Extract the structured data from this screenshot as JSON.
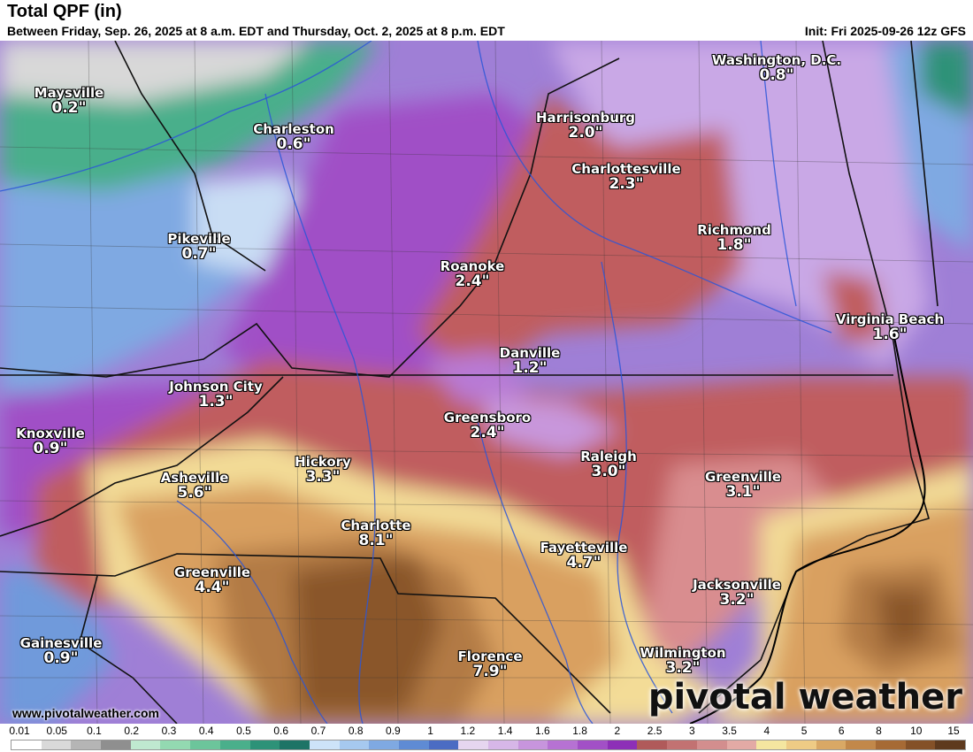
{
  "header": {
    "title": "Total QPF (in)",
    "subtitle": "Between Friday, Sep. 26, 2025 at 8 a.m. EDT and Thursday, Oct. 2, 2025 at 8 p.m. EDT",
    "init": "Init: Fri 2025-09-26 12z GFS"
  },
  "cities": [
    {
      "name": "Maysville",
      "value": "0.2\""
    },
    {
      "name": "Charleston",
      "value": "0.6\""
    },
    {
      "name": "Washington, D.C.",
      "value": "0.8\""
    },
    {
      "name": "Harrisonburg",
      "value": "2.0\""
    },
    {
      "name": "Charlottesville",
      "value": "2.3\""
    },
    {
      "name": "Pikeville",
      "value": "0.7\""
    },
    {
      "name": "Richmond",
      "value": "1.8\""
    },
    {
      "name": "Roanoke",
      "value": "2.4\""
    },
    {
      "name": "Virginia Beach",
      "value": "1.6\""
    },
    {
      "name": "Danville",
      "value": "1.2\""
    },
    {
      "name": "Johnson City",
      "value": "1.3\""
    },
    {
      "name": "Greensboro",
      "value": "2.4\""
    },
    {
      "name": "Knoxville",
      "value": "0.9\""
    },
    {
      "name": "Hickory",
      "value": "3.3\""
    },
    {
      "name": "Raleigh",
      "value": "3.0\""
    },
    {
      "name": "Asheville",
      "value": "5.6\""
    },
    {
      "name": "Greenville",
      "value": "3.1\""
    },
    {
      "name": "Charlotte",
      "value": "8.1\""
    },
    {
      "name": "Fayetteville",
      "value": "4.7\""
    },
    {
      "name": "Greenville",
      "value": "4.4\""
    },
    {
      "name": "Jacksonville",
      "value": "3.2\""
    },
    {
      "name": "Gainesville",
      "value": "0.9\""
    },
    {
      "name": "Florence",
      "value": "7.9\""
    },
    {
      "name": "Wilmington",
      "value": "3.2\""
    }
  ],
  "branding": {
    "watermark": "pivotal weather",
    "site": "www.pivotalweather.com"
  },
  "legend": {
    "labels": [
      "0.01",
      "0.05",
      "0.1",
      "0.2",
      "0.3",
      "0.4",
      "0.5",
      "0.6",
      "0.7",
      "0.8",
      "0.9",
      "1",
      "1.2",
      "1.4",
      "1.6",
      "1.8",
      "2",
      "2.5",
      "3",
      "3.5",
      "4",
      "5",
      "6",
      "8",
      "10",
      "15"
    ],
    "colors": [
      "#ffffff",
      "#d9d9d9",
      "#b5b5b5",
      "#8f8f8f",
      "#bfe9d0",
      "#93d9b1",
      "#6cc59b",
      "#4aaf8b",
      "#2d9278",
      "#1e7466",
      "#cde3f8",
      "#a6c9ef",
      "#7fa9e2",
      "#5f8bd4",
      "#4b6cc3",
      "#e6d6f0",
      "#d7b7e8",
      "#c795dd",
      "#b672d3",
      "#a250c6",
      "#8d2fb7",
      "#b05a5a",
      "#c27272",
      "#d38e8e",
      "#e3aaa5",
      "#f4e6a0",
      "#eecb85",
      "#d9a865",
      "#c2884a",
      "#a66a35",
      "#845128",
      "#5e3a1e"
    ]
  },
  "colors": {
    "low_gray": "#d8d8d8",
    "green": "#4aaf8b",
    "blue": "#6f9adb",
    "light_blue": "#c9ddf4",
    "purple": "#b56ad3",
    "red": "#c05d5e",
    "pink": "#d98d8f",
    "tan": "#f3dc97",
    "orange": "#d9a060",
    "brown": "#8a562c"
  }
}
